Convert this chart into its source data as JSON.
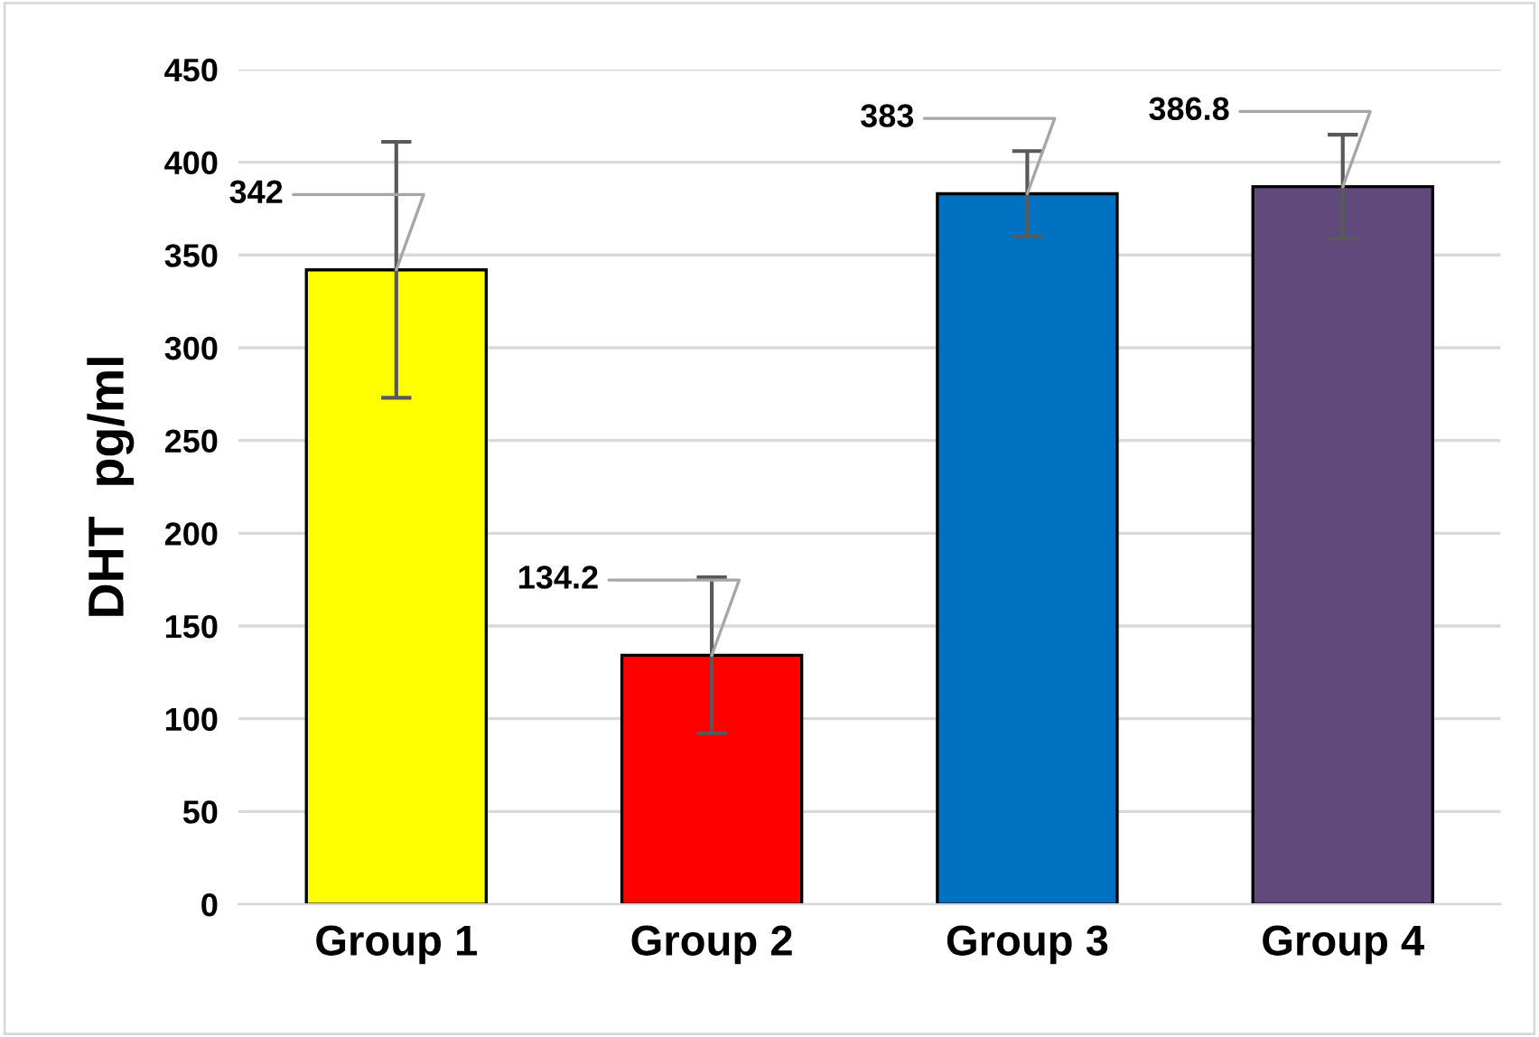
{
  "chart_data": {
    "type": "bar",
    "ylabel": "DHT  pg/ml",
    "categories": [
      "Group 1",
      "Group 2",
      "Group 3",
      "Group 4"
    ],
    "values": [
      342,
      134.2,
      383,
      386.8
    ],
    "colors": [
      "#ffff00",
      "#ff0000",
      "#0070c0",
      "#604a7b"
    ],
    "errors": [
      69,
      42,
      23,
      28
    ],
    "ylim": [
      0,
      450
    ],
    "yticks": [
      0,
      50,
      100,
      150,
      200,
      250,
      300,
      350,
      400,
      450
    ],
    "grid": "y",
    "data_labels": true
  }
}
